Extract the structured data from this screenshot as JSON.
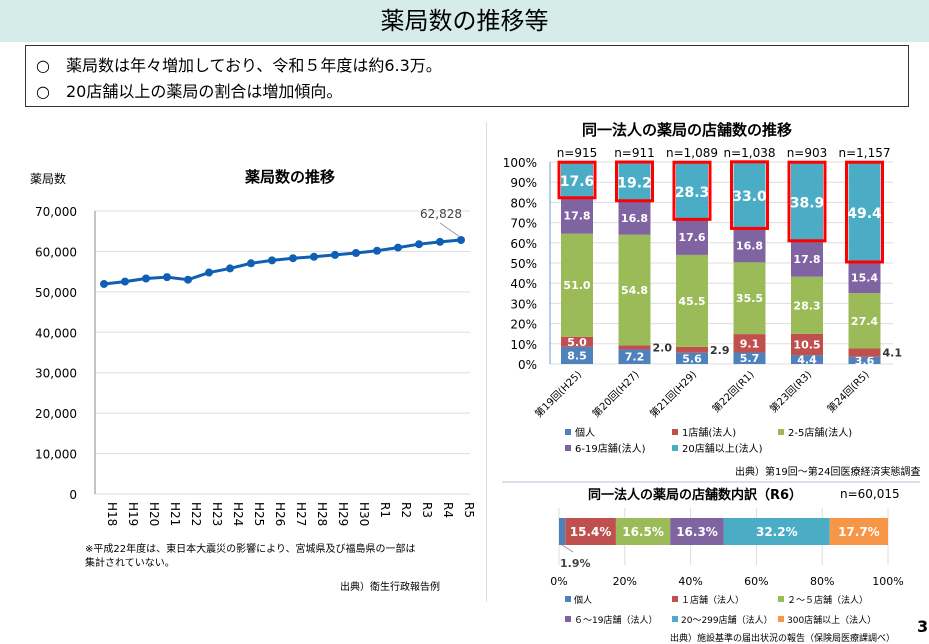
{
  "slide": {
    "title": "薬局数の推移等",
    "page_number": "3",
    "bullets": [
      "○　薬局数は年々増加しており、令和５年度は約6.3万。",
      "○　20店舗以上の薬局の割合は増加傾向。"
    ]
  },
  "line_note": "※平成22年度は、東日本大震災の影響により、宮城県及び福島県の一部は集計されていない。",
  "line_source": "出典）衛生行政報告例",
  "bar_source": "出典）第19回～第24回医療経済実態調査",
  "hbar_source": "出典）施設基準の届出状況の報告（保険局医療課調べ）",
  "chart_data": [
    {
      "type": "line",
      "title": "薬局数の推移",
      "ylabel": "薬局数",
      "ylim": [
        0,
        70000
      ],
      "yticks": [
        "0",
        "10,000",
        "20,000",
        "30,000",
        "40,000",
        "50,000",
        "60,000",
        "70,000"
      ],
      "grid": true,
      "categories": [
        "H18",
        "H19",
        "H20",
        "H21",
        "H22",
        "H23",
        "H24",
        "H25",
        "H26",
        "H27",
        "H28",
        "H29",
        "H30",
        "R1",
        "R2",
        "R3",
        "R4",
        "R5"
      ],
      "values": [
        51952,
        52539,
        53304,
        53642,
        53001,
        54780,
        55797,
        57071,
        57784,
        58326,
        58678,
        59138,
        59613,
        60171,
        60951,
        61791,
        62375,
        62828
      ],
      "color": "#0f5fb4",
      "data_label": "62,828"
    },
    {
      "type": "bar",
      "stacked": true,
      "title": "同一法人の薬局の店舗数の推移",
      "ylim": [
        0,
        100
      ],
      "yticks": [
        "0%",
        "10%",
        "20%",
        "30%",
        "40%",
        "50%",
        "60%",
        "70%",
        "80%",
        "90%",
        "100%"
      ],
      "categories": [
        "第19回(H25)",
        "第20回(H27)",
        "第21回(H29)",
        "第22回(R1)",
        "第23回(R3)",
        "第24回(R5)"
      ],
      "n_labels": [
        "n=915",
        "n=911",
        "n=1,089",
        "n=1,038",
        "n=903",
        "n=1,157"
      ],
      "series": [
        {
          "name": "個人",
          "color": "#4f81bd",
          "values": [
            8.5,
            7.2,
            5.6,
            5.7,
            4.4,
            3.6
          ]
        },
        {
          "name": "1店舗(法人)",
          "color": "#c0504d",
          "values": [
            5.0,
            2.0,
            2.9,
            9.1,
            10.5,
            4.1
          ]
        },
        {
          "name": "2-5店舗(法人)",
          "color": "#9bbb59",
          "values": [
            51.0,
            54.8,
            45.5,
            35.5,
            28.3,
            27.4
          ]
        },
        {
          "name": "6-19店舗(法人)",
          "color": "#8064a2",
          "values": [
            17.8,
            16.8,
            17.6,
            16.8,
            17.8,
            15.4
          ]
        },
        {
          "name": "20店舗以上(法人)",
          "color": "#4bacc6",
          "values": [
            17.6,
            19.2,
            28.3,
            33.0,
            38.9,
            49.4
          ]
        }
      ],
      "highlight_color": "#ff0000",
      "legend": "bottom"
    },
    {
      "type": "bar",
      "orientation": "horizontal",
      "stacked": true,
      "title": "同一法人の薬局の店舗数内訳（R6）",
      "n_label": "n=60,015",
      "xticks": [
        "0%",
        "20%",
        "40%",
        "60%",
        "80%",
        "100%"
      ],
      "xlim": [
        0,
        100
      ],
      "series": [
        {
          "name": "個人",
          "color": "#4f81bd",
          "value": 1.9,
          "label": "1.9%"
        },
        {
          "name": "１店舗（法人）",
          "color": "#c0504d",
          "value": 15.4,
          "label": "15.4%"
        },
        {
          "name": "２～５店舗（法人）",
          "color": "#9bbb59",
          "value": 16.5,
          "label": "16.5%"
        },
        {
          "name": "６～19店舗（法人）",
          "color": "#8064a2",
          "value": 16.3,
          "label": "16.3%"
        },
        {
          "name": "20～299店舗（法人）",
          "color": "#4bacc6",
          "value": 32.2,
          "label": "32.2%"
        },
        {
          "name": "300店舗以上（法人）",
          "color": "#f79646",
          "value": 17.7,
          "label": "17.7%"
        }
      ],
      "legend": "bottom"
    }
  ]
}
